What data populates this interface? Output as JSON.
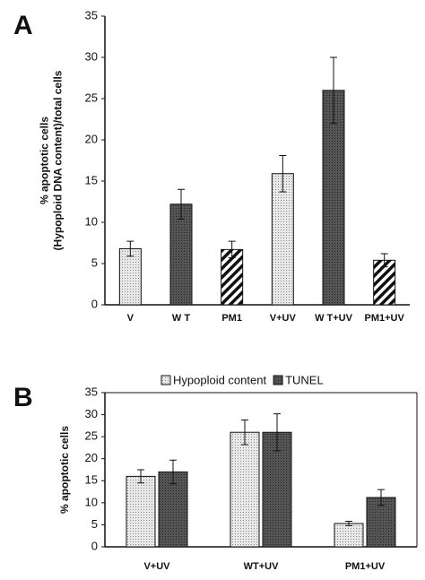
{
  "chart_data": [
    {
      "type": "bar",
      "panel": "A",
      "ylabel": [
        "% apoptotic cells",
        "(Hypoploid DNA content)/total cells"
      ],
      "categories": [
        "V",
        "W T",
        "PM1",
        "V+UV",
        "W T+UV",
        "PM1+UV"
      ],
      "values": [
        6.8,
        12.2,
        6.7,
        15.9,
        26,
        5.4
      ],
      "errors": [
        0.9,
        1.8,
        1.0,
        2.2,
        4.0,
        0.8
      ],
      "patterns": [
        "dots",
        "dark",
        "hatch",
        "dots",
        "dark",
        "hatch"
      ],
      "ylim": [
        0,
        35
      ],
      "yticks": [
        0,
        5,
        10,
        15,
        20,
        25,
        30,
        35
      ]
    },
    {
      "type": "grouped-bar",
      "panel": "B",
      "ylabel": [
        "% apoptotic cells"
      ],
      "categories": [
        "V+UV",
        "WT+UV",
        "PM1+UV"
      ],
      "series": [
        {
          "name": "Hypoploid content",
          "pattern": "dots",
          "values": [
            16,
            26,
            5.3
          ],
          "errors": [
            1.5,
            2.8,
            0.5
          ]
        },
        {
          "name": "TUNEL",
          "pattern": "dark",
          "values": [
            17,
            26,
            11.2
          ],
          "errors": [
            2.7,
            4.2,
            1.8
          ]
        }
      ],
      "ylim": [
        0,
        35
      ],
      "yticks": [
        0,
        5,
        10,
        15,
        20,
        25,
        30,
        35
      ],
      "legend": "top"
    }
  ]
}
